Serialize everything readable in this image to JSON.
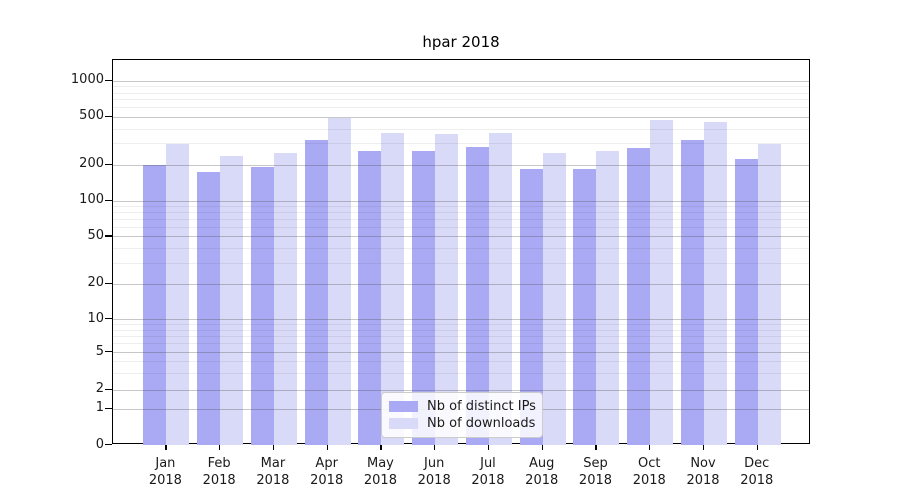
{
  "chart_data": {
    "type": "bar",
    "title": "hpar 2018",
    "categories": [
      "Jan 2018",
      "Feb 2018",
      "Mar 2018",
      "Apr 2018",
      "May 2018",
      "Jun 2018",
      "Jul 2018",
      "Aug 2018",
      "Sep 2018",
      "Oct 2018",
      "Nov 2018",
      "Dec 2018"
    ],
    "x_tick_months": [
      "Jan",
      "Feb",
      "Mar",
      "Apr",
      "May",
      "Jun",
      "Jul",
      "Aug",
      "Sep",
      "Oct",
      "Nov",
      "Dec"
    ],
    "x_tick_year": "2018",
    "series": [
      {
        "name": "Nb of distinct IPs",
        "color": "#a9a9f4",
        "values": [
          200,
          172,
          192,
          318,
          258,
          259,
          280,
          184,
          184,
          273,
          319,
          224
        ]
      },
      {
        "name": "Nb of downloads",
        "color": "#d9d9f8",
        "values": [
          299,
          236,
          248,
          490,
          365,
          361,
          367,
          249,
          259,
          472,
          456,
          295
        ]
      }
    ],
    "yscale": "log-like (symlog, compressed linear region below 2)",
    "ylim": [
      0,
      1500
    ],
    "y_ticks": [
      0,
      1,
      2,
      5,
      10,
      20,
      50,
      100,
      200,
      500,
      1000
    ],
    "y_minor_gridlines": [
      3,
      4,
      6,
      7,
      8,
      9,
      30,
      40,
      60,
      70,
      80,
      90,
      300,
      400,
      600,
      700,
      800,
      900
    ],
    "grid": "horizontal major+minor gridlines drawn over bars",
    "legend_position": "inside bottom-center",
    "xlabel": "",
    "ylabel": ""
  }
}
